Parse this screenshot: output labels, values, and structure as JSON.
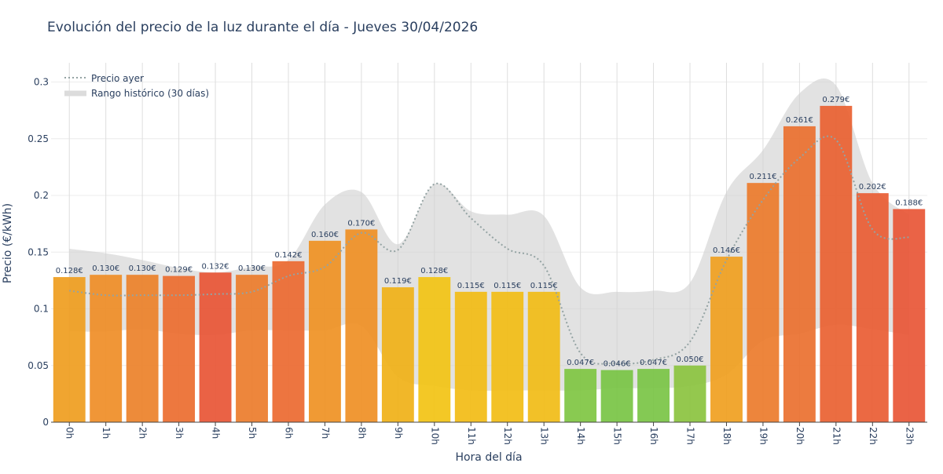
{
  "chart_data": {
    "type": "bar",
    "title": "Evolución del precio de la luz durante el día - Jueves 30/04/2026",
    "xlabel": "Hora del día",
    "ylabel": "Precio (€/kWh)",
    "ylim": [
      0,
      0.317
    ],
    "yticks": [
      0,
      0.05,
      0.1,
      0.15,
      0.2,
      0.25,
      0.3
    ],
    "ytick_labels": [
      "0",
      "0.05",
      "0.1",
      "0.15",
      "0.2",
      "0.25",
      "0.3"
    ],
    "grid": true,
    "legend_position": "top-left",
    "categories": [
      "0h",
      "1h",
      "2h",
      "3h",
      "4h",
      "5h",
      "6h",
      "7h",
      "8h",
      "9h",
      "10h",
      "11h",
      "12h",
      "13h",
      "14h",
      "15h",
      "16h",
      "17h",
      "18h",
      "19h",
      "20h",
      "21h",
      "22h",
      "23h"
    ],
    "values": [
      0.128,
      0.13,
      0.13,
      0.129,
      0.132,
      0.13,
      0.142,
      0.16,
      0.17,
      0.119,
      0.128,
      0.115,
      0.115,
      0.115,
      0.047,
      0.046,
      0.047,
      0.05,
      0.146,
      0.211,
      0.261,
      0.279,
      0.202,
      0.188
    ],
    "value_labels": [
      "0.128€",
      "0.130€",
      "0.130€",
      "0.129€",
      "0.132€",
      "0.130€",
      "0.142€",
      "0.160€",
      "0.170€",
      "0.119€",
      "0.128€",
      "0.115€",
      "0.115€",
      "0.115€",
      "0.047€",
      "0.046€",
      "0.047€",
      "0.050€",
      "0.146€",
      "0.211€",
      "0.261€",
      "0.279€",
      "0.202€",
      "0.188€"
    ],
    "bar_colors": [
      "#ef9d1e",
      "#ef8d26",
      "#ec8129",
      "#eb6d2f",
      "#e85535",
      "#ec7c2b",
      "#eb6930",
      "#ef9123",
      "#ef8f24",
      "#f0b117",
      "#f2c313",
      "#f2bc15",
      "#f2bd15",
      "#f1bc16",
      "#7fc642",
      "#78c444",
      "#7ac445",
      "#8bc33f",
      "#f0a020",
      "#ec7b2b",
      "#ea702f",
      "#e96131",
      "#e95c33",
      "#e85636"
    ],
    "series": [
      {
        "name": "Precio ayer",
        "style": "dotted",
        "color": "#94a3a3",
        "values": [
          0.116,
          0.112,
          0.112,
          0.112,
          0.113,
          0.115,
          0.129,
          0.137,
          0.167,
          0.152,
          0.21,
          0.18,
          0.153,
          0.138,
          0.061,
          0.052,
          0.055,
          0.071,
          0.143,
          0.196,
          0.233,
          0.249,
          0.17,
          0.163
        ]
      },
      {
        "name": "Rango histórico (30 días)",
        "type": "band",
        "color": "#d0d0d0",
        "upper": [
          0.153,
          0.149,
          0.143,
          0.136,
          0.132,
          0.137,
          0.143,
          0.192,
          0.203,
          0.157,
          0.21,
          0.186,
          0.183,
          0.182,
          0.119,
          0.115,
          0.116,
          0.123,
          0.203,
          0.24,
          0.29,
          0.297,
          0.211,
          0.183
        ],
        "lower": [
          0.08,
          0.08,
          0.082,
          0.078,
          0.077,
          0.081,
          0.081,
          0.081,
          0.085,
          0.04,
          0.032,
          0.028,
          0.028,
          0.028,
          0.028,
          0.03,
          0.03,
          0.032,
          0.042,
          0.072,
          0.078,
          0.086,
          0.082,
          0.077
        ]
      }
    ]
  },
  "legend": {
    "yesterday_label": "Precio ayer",
    "range_label": "Rango histórico (30 días)"
  }
}
